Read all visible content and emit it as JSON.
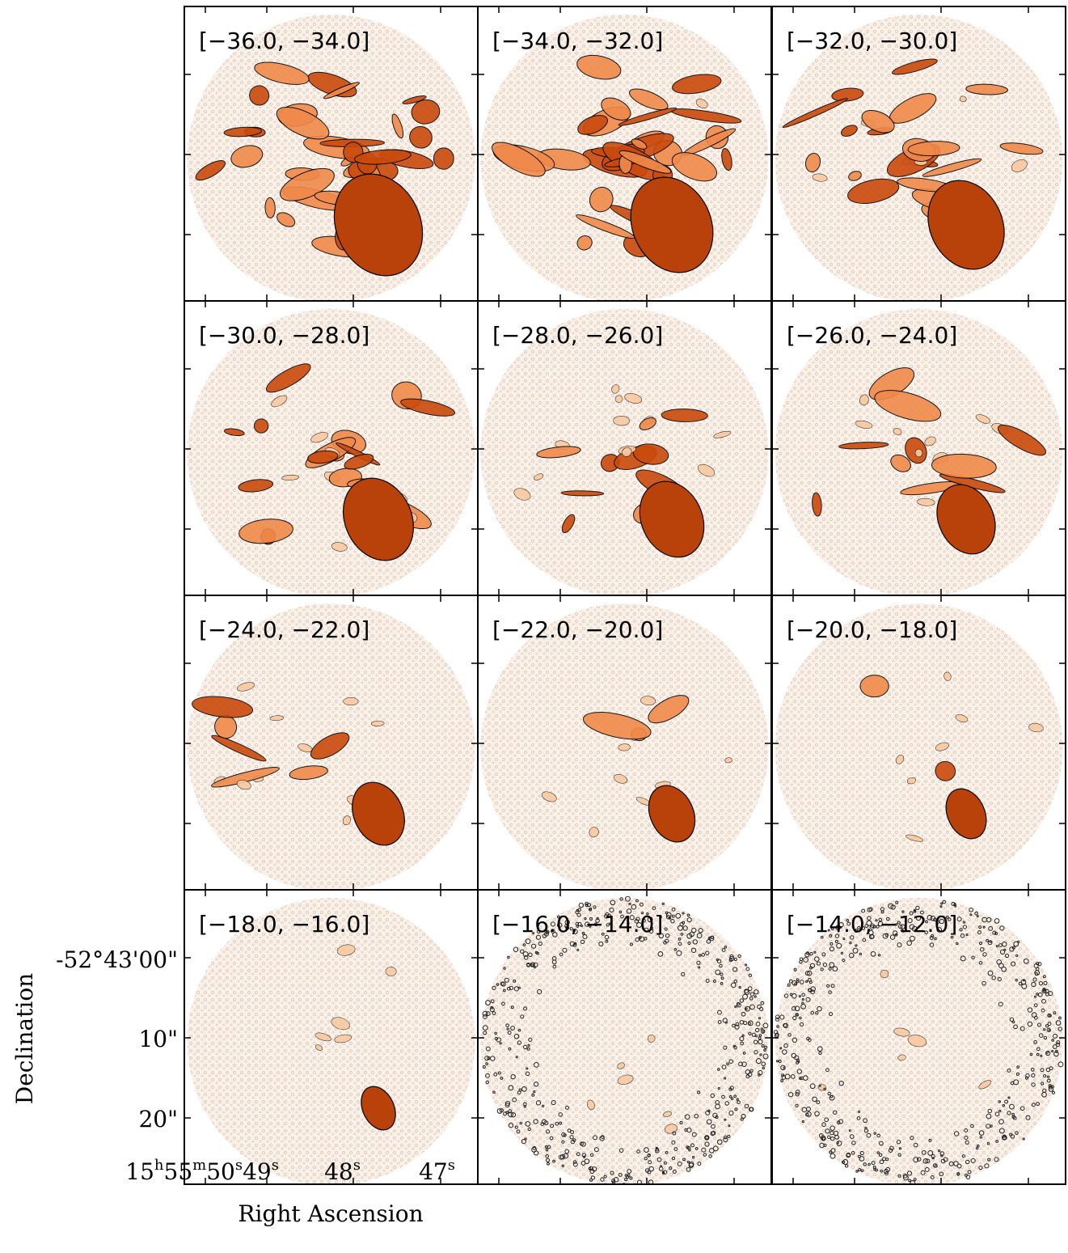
{
  "panels": [
    {
      "label": "[−36.0, −34.0]"
    },
    {
      "label": "[−34.0, −32.0]"
    },
    {
      "label": "[−32.0, −30.0]"
    },
    {
      "label": "[−30.0, −28.0]"
    },
    {
      "label": "[−28.0, −26.0]"
    },
    {
      "label": "[−26.0, −24.0]"
    },
    {
      "label": "[−24.0, −22.0]"
    },
    {
      "label": "[−22.0, −20.0]"
    },
    {
      "label": "[−20.0, −18.0]"
    },
    {
      "label": "[−18.0, −16.0]"
    },
    {
      "label": "[−16.0, −14.0]"
    },
    {
      "label": "[−14.0, −12.0]"
    }
  ],
  "x_axis": {
    "label": "Right Ascension",
    "ticks": [
      [
        "15",
        "h",
        "55",
        "m",
        "50",
        "s",
        "49",
        "s"
      ],
      [
        "48",
        "s"
      ],
      [
        "47",
        "s"
      ]
    ]
  },
  "y_axis": {
    "label": "Declination",
    "ticks": [
      "-52°43'00\"",
      "10\"",
      "20\""
    ]
  }
}
